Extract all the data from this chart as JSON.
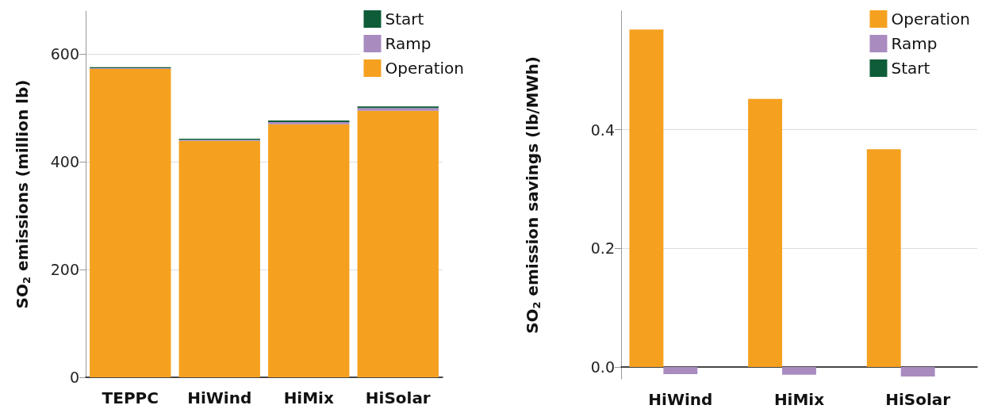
{
  "chart_data": [
    {
      "type": "bar",
      "ylabel": "SO$_{2}$ emissions (million lb)",
      "categories": [
        "TEPPC",
        "HiWind",
        "HiMix",
        "HiSolar"
      ],
      "stacked": true,
      "series": [
        {
          "name": "Operation",
          "color": "#f5a11f",
          "values": [
            573,
            439,
            470,
            495
          ]
        },
        {
          "name": "Ramp",
          "color": "#a98bc0",
          "values": [
            1,
            2,
            4,
            5
          ]
        },
        {
          "name": "Start",
          "color": "#0e5c38",
          "values": [
            2,
            2,
            3,
            3
          ]
        }
      ],
      "ylim": [
        0,
        680
      ],
      "yticks": [
        0,
        200,
        400,
        600
      ],
      "grid": "y",
      "legend": "top right"
    },
    {
      "type": "bar",
      "ylabel": "SO$_{2}$ emission savings (lb/MWh)",
      "categories": [
        "HiWind",
        "HiMix",
        "HiSolar"
      ],
      "series": [
        {
          "name": "Operation",
          "color": "#f5a11f",
          "values": [
            0.569,
            0.452,
            0.367
          ]
        },
        {
          "name": "Ramp",
          "color": "#a98bc0",
          "values": [
            -0.012,
            -0.013,
            -0.016
          ]
        },
        {
          "name": "Start",
          "color": "#0e5c38",
          "values": [
            0,
            0,
            0
          ]
        }
      ],
      "ylim": [
        -0.02,
        0.6
      ],
      "yticks": [
        {
          "value": 0,
          "label": "0.0"
        },
        {
          "value": 0.2,
          "label": "0.2"
        },
        {
          "value": 0.4,
          "label": "0.4"
        }
      ],
      "grid": "y",
      "legend": "top right"
    }
  ]
}
